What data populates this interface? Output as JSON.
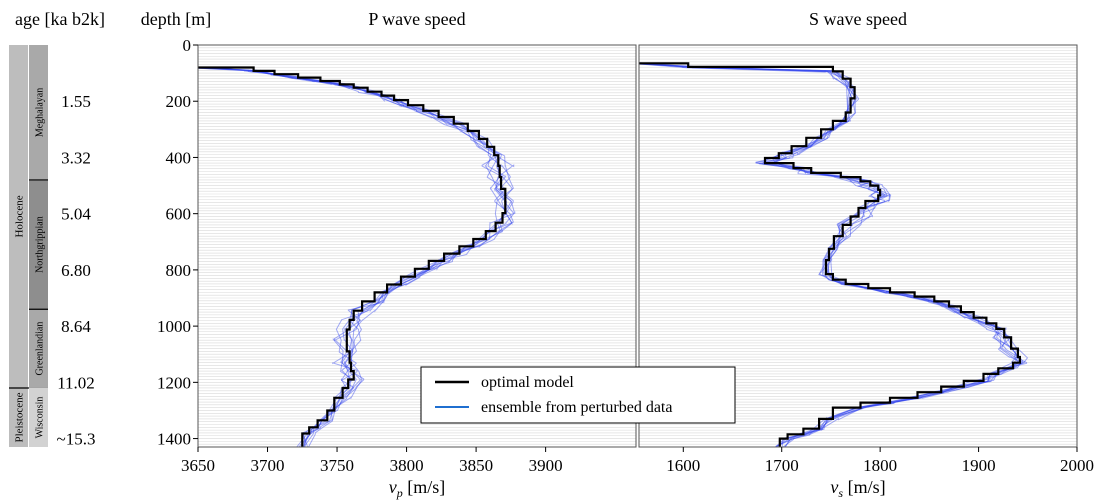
{
  "chart_data": [
    {
      "type": "line",
      "title": "P wave speed",
      "xlabel_var": "v",
      "xlabel_sub": "p",
      "xlabel_unit": " [m/s]",
      "ylabel": "depth [m]",
      "xlim": [
        3650,
        3965
      ],
      "ylim": [
        1430,
        0
      ],
      "x_ticks": [
        3650,
        3700,
        3750,
        3800,
        3850,
        3900
      ],
      "y_ticks": [
        0,
        200,
        400,
        600,
        800,
        1000,
        1200,
        1400
      ],
      "grid": "horizontal",
      "series": [
        {
          "name": "optimal model",
          "color": "#000000",
          "points": [
            [
              3650,
              80
            ],
            [
              3690,
              80
            ],
            [
              3690,
              92
            ],
            [
              3705,
              92
            ],
            [
              3705,
              104
            ],
            [
              3722,
              104
            ],
            [
              3722,
              116
            ],
            [
              3738,
              116
            ],
            [
              3738,
              128
            ],
            [
              3752,
              128
            ],
            [
              3752,
              140
            ],
            [
              3762,
              140
            ],
            [
              3762,
              152
            ],
            [
              3772,
              152
            ],
            [
              3772,
              166
            ],
            [
              3782,
              166
            ],
            [
              3782,
              180
            ],
            [
              3791,
              180
            ],
            [
              3791,
              196
            ],
            [
              3801,
              196
            ],
            [
              3801,
              214
            ],
            [
              3812,
              214
            ],
            [
              3812,
              234
            ],
            [
              3823,
              234
            ],
            [
              3823,
              256
            ],
            [
              3834,
              256
            ],
            [
              3834,
              280
            ],
            [
              3844,
              280
            ],
            [
              3844,
              306
            ],
            [
              3852,
              306
            ],
            [
              3852,
              334
            ],
            [
              3858,
              334
            ],
            [
              3858,
              362
            ],
            [
              3863,
              362
            ],
            [
              3863,
              392
            ],
            [
              3866,
              392
            ],
            [
              3866,
              430
            ],
            [
              3867,
              430
            ],
            [
              3867,
              470
            ],
            [
              3868,
              470
            ],
            [
              3868,
              512
            ],
            [
              3871,
              512
            ],
            [
              3871,
              556
            ],
            [
              3871,
              556
            ],
            [
              3871,
              598
            ],
            [
              3869,
              598
            ],
            [
              3869,
              632
            ],
            [
              3864,
              632
            ],
            [
              3864,
              662
            ],
            [
              3857,
              662
            ],
            [
              3857,
              690
            ],
            [
              3848,
              690
            ],
            [
              3848,
              716
            ],
            [
              3838,
              716
            ],
            [
              3838,
              742
            ],
            [
              3827,
              742
            ],
            [
              3827,
              768
            ],
            [
              3816,
              768
            ],
            [
              3816,
              796
            ],
            [
              3806,
              796
            ],
            [
              3806,
              824
            ],
            [
              3796,
              824
            ],
            [
              3796,
              852
            ],
            [
              3786,
              852
            ],
            [
              3786,
              880
            ],
            [
              3777,
              880
            ],
            [
              3777,
              912
            ],
            [
              3768,
              912
            ],
            [
              3768,
              945
            ],
            [
              3762,
              945
            ],
            [
              3762,
              978
            ],
            [
              3759,
              978
            ],
            [
              3759,
              1012
            ],
            [
              3757,
              1012
            ],
            [
              3757,
              1050
            ],
            [
              3757,
              1050
            ],
            [
              3757,
              1090
            ],
            [
              3759,
              1090
            ],
            [
              3759,
              1130
            ],
            [
              3760,
              1130
            ],
            [
              3760,
              1160
            ],
            [
              3762,
              1160
            ],
            [
              3762,
              1190
            ],
            [
              3758,
              1190
            ],
            [
              3758,
              1220
            ],
            [
              3754,
              1220
            ],
            [
              3754,
              1255
            ],
            [
              3748,
              1255
            ],
            [
              3748,
              1300
            ],
            [
              3743,
              1300
            ],
            [
              3743,
              1335
            ],
            [
              3736,
              1335
            ],
            [
              3736,
              1360
            ],
            [
              3730,
              1360
            ],
            [
              3730,
              1382
            ],
            [
              3725,
              1382
            ],
            [
              3725,
              1430
            ]
          ]
        },
        {
          "name": "ensemble from perturbed data",
          "color": "#1f6fd0",
          "points": []
        }
      ]
    },
    {
      "type": "line",
      "title": "S wave speed",
      "xlabel_var": "v",
      "xlabel_sub": "s",
      "xlabel_unit": " [m/s]",
      "xlim": [
        1555,
        2000
      ],
      "ylim": [
        1430,
        0
      ],
      "x_ticks": [
        1600,
        1700,
        1800,
        1900,
        2000
      ],
      "grid": "horizontal",
      "series": [
        {
          "name": "optimal model",
          "color": "#000000",
          "points": [
            [
              1555,
              65
            ],
            [
              1605,
              65
            ],
            [
              1605,
              78
            ],
            [
              1752,
              78
            ],
            [
              1752,
              94
            ],
            [
              1762,
              94
            ],
            [
              1762,
              120
            ],
            [
              1770,
              120
            ],
            [
              1770,
              150
            ],
            [
              1774,
              150
            ],
            [
              1774,
              190
            ],
            [
              1770,
              190
            ],
            [
              1770,
              240
            ],
            [
              1765,
              240
            ],
            [
              1765,
              270
            ],
            [
              1752,
              270
            ],
            [
              1752,
              300
            ],
            [
              1740,
              300
            ],
            [
              1740,
              330
            ],
            [
              1725,
              330
            ],
            [
              1725,
              360
            ],
            [
              1710,
              360
            ],
            [
              1710,
              385
            ],
            [
              1697,
              385
            ],
            [
              1697,
              402
            ],
            [
              1683,
              402
            ],
            [
              1683,
              420
            ],
            [
              1712,
              420
            ],
            [
              1712,
              438
            ],
            [
              1730,
              438
            ],
            [
              1730,
              455
            ],
            [
              1760,
              455
            ],
            [
              1760,
              470
            ],
            [
              1780,
              470
            ],
            [
              1780,
              485
            ],
            [
              1790,
              485
            ],
            [
              1790,
              500
            ],
            [
              1798,
              500
            ],
            [
              1798,
              515
            ],
            [
              1800,
              515
            ],
            [
              1800,
              535
            ],
            [
              1798,
              535
            ],
            [
              1798,
              555
            ],
            [
              1785,
              555
            ],
            [
              1785,
              580
            ],
            [
              1778,
              580
            ],
            [
              1778,
              610
            ],
            [
              1770,
              610
            ],
            [
              1770,
              640
            ],
            [
              1762,
              640
            ],
            [
              1762,
              680
            ],
            [
              1753,
              680
            ],
            [
              1753,
              725
            ],
            [
              1748,
              725
            ],
            [
              1748,
              765
            ],
            [
              1745,
              765
            ],
            [
              1745,
              815
            ],
            [
              1752,
              815
            ],
            [
              1752,
              835
            ],
            [
              1765,
              835
            ],
            [
              1765,
              850
            ],
            [
              1788,
              850
            ],
            [
              1788,
              865
            ],
            [
              1810,
              865
            ],
            [
              1810,
              880
            ],
            [
              1835,
              880
            ],
            [
              1835,
              895
            ],
            [
              1855,
              895
            ],
            [
              1855,
              912
            ],
            [
              1870,
              912
            ],
            [
              1870,
              930
            ],
            [
              1882,
              930
            ],
            [
              1882,
              950
            ],
            [
              1895,
              950
            ],
            [
              1895,
              970
            ],
            [
              1908,
              970
            ],
            [
              1908,
              990
            ],
            [
              1918,
              990
            ],
            [
              1918,
              1010
            ],
            [
              1926,
              1010
            ],
            [
              1926,
              1040
            ],
            [
              1933,
              1040
            ],
            [
              1933,
              1080
            ],
            [
              1940,
              1080
            ],
            [
              1940,
              1110
            ],
            [
              1942,
              1110
            ],
            [
              1942,
              1130
            ],
            [
              1935,
              1130
            ],
            [
              1935,
              1150
            ],
            [
              1920,
              1150
            ],
            [
              1920,
              1170
            ],
            [
              1905,
              1170
            ],
            [
              1905,
              1195
            ],
            [
              1885,
              1195
            ],
            [
              1885,
              1215
            ],
            [
              1862,
              1215
            ],
            [
              1862,
              1235
            ],
            [
              1838,
              1235
            ],
            [
              1838,
              1255
            ],
            [
              1810,
              1255
            ],
            [
              1810,
              1272
            ],
            [
              1780,
              1272
            ],
            [
              1780,
              1290
            ],
            [
              1752,
              1290
            ],
            [
              1752,
              1330
            ],
            [
              1738,
              1330
            ],
            [
              1738,
              1365
            ],
            [
              1722,
              1365
            ],
            [
              1722,
              1385
            ],
            [
              1706,
              1385
            ],
            [
              1706,
              1400
            ],
            [
              1698,
              1400
            ],
            [
              1698,
              1430
            ]
          ]
        },
        {
          "name": "ensemble from perturbed data",
          "color": "#1f6fd0",
          "points": []
        }
      ]
    }
  ],
  "timeline": {
    "header": "age [ka b2k]",
    "ages": [
      {
        "label": "1.55",
        "depth": 200
      },
      {
        "label": "3.32",
        "depth": 400
      },
      {
        "label": "5.04",
        "depth": 600
      },
      {
        "label": "6.80",
        "depth": 800
      },
      {
        "label": "8.64",
        "depth": 1000
      },
      {
        "label": "11.02",
        "depth": 1200
      },
      {
        "label": "~15.3",
        "depth": 1400
      }
    ],
    "epochs": [
      {
        "label": "Holocene",
        "from": 0,
        "to": 1220
      },
      {
        "label": "Pleistocene",
        "from": 1220,
        "to": 1430
      }
    ],
    "stages": [
      {
        "label": "Meghalayan",
        "from": 0,
        "to": 480,
        "color": "#a9a9a9"
      },
      {
        "label": "Northgrippian",
        "from": 480,
        "to": 940,
        "color": "#8e8e8e"
      },
      {
        "label": "Greenlandian",
        "from": 940,
        "to": 1220,
        "color": "#a9a9a9"
      },
      {
        "label": "Wisconsin",
        "from": 1220,
        "to": 1430,
        "color": "#d2d2d2"
      }
    ],
    "epoch_color": "#bdbdbd"
  },
  "legend": {
    "position": "lower-center",
    "items": [
      {
        "label": "optimal model",
        "color": "#000000"
      },
      {
        "label": "ensemble from perturbed data",
        "color": "#1f6fd0"
      }
    ]
  }
}
